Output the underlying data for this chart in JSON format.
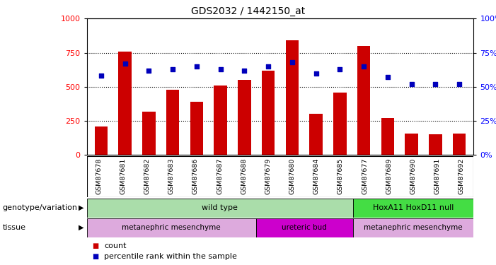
{
  "title": "GDS2032 / 1442150_at",
  "samples": [
    "GSM87678",
    "GSM87681",
    "GSM87682",
    "GSM87683",
    "GSM87686",
    "GSM87687",
    "GSM87688",
    "GSM87679",
    "GSM87680",
    "GSM87684",
    "GSM87685",
    "GSM87677",
    "GSM87689",
    "GSM87690",
    "GSM87691",
    "GSM87692"
  ],
  "counts": [
    210,
    760,
    320,
    480,
    390,
    510,
    550,
    620,
    840,
    300,
    460,
    800,
    270,
    155,
    150,
    155
  ],
  "percentiles": [
    58,
    67,
    62,
    63,
    65,
    63,
    62,
    65,
    68,
    60,
    63,
    65,
    57,
    52,
    52,
    52
  ],
  "ylim_left": [
    0,
    1000
  ],
  "ylim_right": [
    0,
    100
  ],
  "yticks_left": [
    0,
    250,
    500,
    750,
    1000
  ],
  "yticks_right": [
    0,
    25,
    50,
    75,
    100
  ],
  "bar_color": "#cc0000",
  "dot_color": "#0000bb",
  "genotype_groups": [
    {
      "label": "wild type",
      "start": 0,
      "end": 10,
      "color": "#aaddaa"
    },
    {
      "label": "HoxA11 HoxD11 null",
      "start": 11,
      "end": 15,
      "color": "#44dd44"
    }
  ],
  "tissue_groups": [
    {
      "label": "metanephric mesenchyme",
      "start": 0,
      "end": 6,
      "color": "#ddaadd"
    },
    {
      "label": "ureteric bud",
      "start": 7,
      "end": 10,
      "color": "#cc00cc"
    },
    {
      "label": "metanephric mesenchyme",
      "start": 11,
      "end": 15,
      "color": "#ddaadd"
    }
  ],
  "legend_count": "count",
  "legend_pct": "percentile rank within the sample",
  "genotype_label": "genotype/variation",
  "tissue_label": "tissue",
  "tick_bg_color": "#c8c8c8",
  "tick_border_color": "#aaaaaa"
}
